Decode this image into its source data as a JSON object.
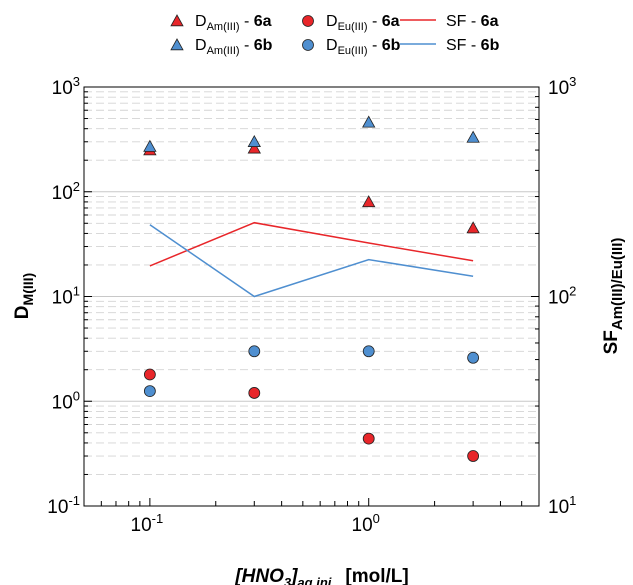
{
  "chart_data": {
    "type": "scatter",
    "x_axis": {
      "label_main": "[HNO",
      "label_sub": "3",
      "label_bracket": "]",
      "label_subscript": "aq,ini",
      "label_unit": "[mol/L]",
      "scale": "log",
      "range": [
        0.05,
        6
      ],
      "ticks": [
        {
          "value": 0.1,
          "base": "10",
          "exp": "-1"
        },
        {
          "value": 1,
          "base": "10",
          "exp": "0"
        }
      ]
    },
    "y_axis_left": {
      "label_main": "D",
      "label_sub": "M(III)",
      "scale": "log",
      "range": [
        0.1,
        1000
      ],
      "ticks": [
        {
          "value": 0.1,
          "base": "10",
          "exp": "-1"
        },
        {
          "value": 1,
          "base": "10",
          "exp": "0"
        },
        {
          "value": 10,
          "base": "10",
          "exp": "1"
        },
        {
          "value": 100,
          "base": "10",
          "exp": "2"
        },
        {
          "value": 1000,
          "base": "10",
          "exp": "3"
        }
      ]
    },
    "y_axis_right": {
      "label_main": "SF",
      "label_sub": "Am(III)/Eu(III)",
      "scale": "log",
      "range": [
        10,
        1000
      ],
      "ticks": [
        {
          "value": 10,
          "base": "10",
          "exp": "1"
        },
        {
          "value": 100,
          "base": "10",
          "exp": "2"
        },
        {
          "value": 1000,
          "base": "10",
          "exp": "3"
        }
      ]
    },
    "grid": "horizontal-dashed",
    "legend_position": "top",
    "series": [
      {
        "id": "dam6a",
        "label_main": "D",
        "label_sub": "Am(III)",
        "label_sep": " - ",
        "label_bold": "6a",
        "marker": "triangle",
        "color": "#e8262a",
        "axis": "left",
        "x": [
          0.1,
          0.3,
          1,
          3
        ],
        "y": [
          250,
          260,
          80,
          45
        ]
      },
      {
        "id": "dam6b",
        "label_main": "D",
        "label_sub": "Am(III)",
        "label_sep": " - ",
        "label_bold": "6b",
        "marker": "triangle",
        "color": "#4f8fd0",
        "axis": "left",
        "x": [
          0.1,
          0.3,
          1,
          3
        ],
        "y": [
          270,
          300,
          460,
          330
        ]
      },
      {
        "id": "deu6a",
        "label_main": "D",
        "label_sub": "Eu(III)",
        "label_sep": " - ",
        "label_bold": "6a",
        "marker": "circle",
        "color": "#e8262a",
        "axis": "left",
        "x": [
          0.1,
          0.3,
          1,
          3
        ],
        "y": [
          1.8,
          1.2,
          0.44,
          0.3
        ]
      },
      {
        "id": "deu6b",
        "label_main": "D",
        "label_sub": "Eu(III)",
        "label_sep": " - ",
        "label_bold": "6b",
        "marker": "circle",
        "color": "#4f8fd0",
        "axis": "left",
        "x": [
          0.1,
          0.3,
          1,
          3
        ],
        "y": [
          1.25,
          3.0,
          3.0,
          2.6
        ]
      },
      {
        "id": "sf6a",
        "label_main": "SF",
        "label_sub": "",
        "label_sep": " - ",
        "label_bold": "6a",
        "marker": "line",
        "color": "#e8262a",
        "axis": "right",
        "x": [
          0.1,
          0.3,
          1,
          3
        ],
        "y": [
          140,
          225,
          180,
          148
        ]
      },
      {
        "id": "sf6b",
        "label_main": "SF",
        "label_sub": "",
        "label_sep": " - ",
        "label_bold": "6b",
        "marker": "line",
        "color": "#4f8fd0",
        "axis": "right",
        "x": [
          0.1,
          0.3,
          1,
          3
        ],
        "y": [
          220,
          100,
          150,
          125
        ]
      }
    ]
  }
}
